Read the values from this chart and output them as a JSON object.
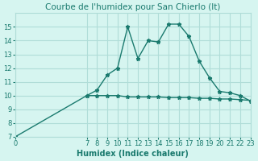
{
  "title": "Courbe de l'humidex pour San Chierlo (It)",
  "xlabel": "Humidex (Indice chaleur)",
  "ylabel": "",
  "bg_color": "#d6f5f0",
  "grid_color": "#b0ddd8",
  "line_color": "#1a7a6e",
  "line1_x": [
    0,
    7,
    8,
    9,
    10,
    11,
    12,
    13,
    14,
    15,
    16,
    17,
    18,
    19,
    20,
    21,
    22,
    23
  ],
  "line1_y": [
    7,
    10,
    10.4,
    11.5,
    12.0,
    15.0,
    12.7,
    14.0,
    13.9,
    15.2,
    15.2,
    14.3,
    12.5,
    11.3,
    10.3,
    10.2,
    10.0,
    9.6
  ],
  "line2_x": [
    7,
    8,
    9,
    10,
    11,
    12,
    13,
    14,
    15,
    16,
    17,
    18,
    19,
    20,
    21,
    22,
    23
  ],
  "line2_y": [
    10.0,
    10.0,
    10.0,
    10.0,
    9.9,
    9.9,
    9.9,
    9.9,
    9.85,
    9.85,
    9.85,
    9.8,
    9.8,
    9.75,
    9.75,
    9.7,
    9.65
  ],
  "xlim": [
    0,
    23
  ],
  "ylim": [
    7,
    16
  ],
  "yticks": [
    7,
    8,
    9,
    10,
    11,
    12,
    13,
    14,
    15
  ],
  "xticks": [
    0,
    7,
    8,
    9,
    10,
    11,
    12,
    13,
    14,
    15,
    16,
    17,
    18,
    19,
    20,
    21,
    22,
    23
  ],
  "title_fontsize": 7.5,
  "tick_fontsize": 6,
  "label_fontsize": 7
}
